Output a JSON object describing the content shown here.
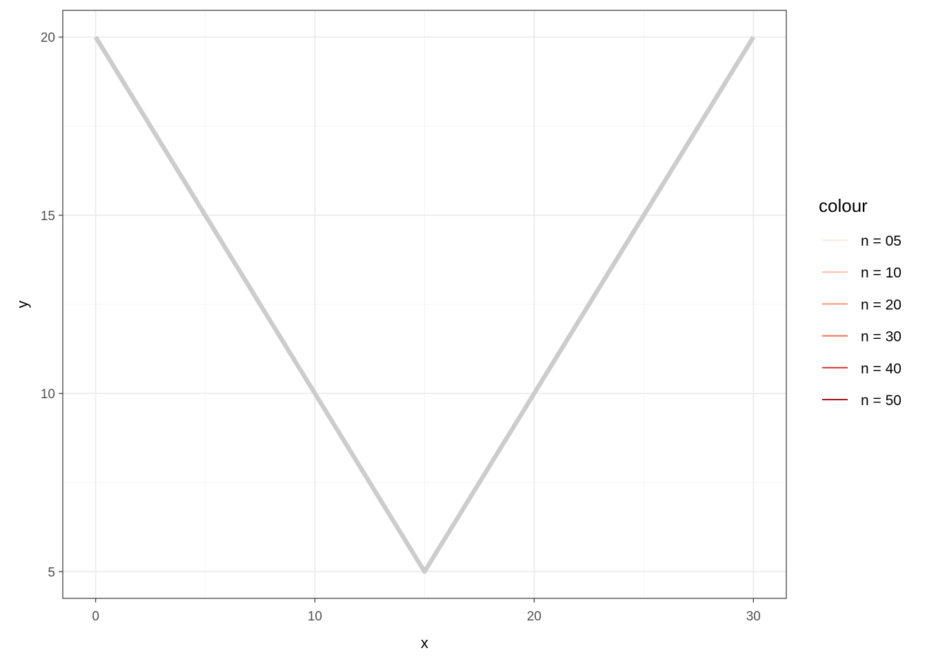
{
  "chart_data": {
    "type": "line",
    "title": "",
    "xlabel": "x",
    "ylabel": "y",
    "xlim": [
      -1.5,
      31.5
    ],
    "ylim": [
      4.25,
      20.75
    ],
    "x_ticks": [
      0,
      10,
      20,
      30
    ],
    "y_ticks": [
      5,
      10,
      15,
      20
    ],
    "x_tick_labels": [
      "0",
      "10",
      "20",
      "30"
    ],
    "y_tick_labels": [
      "5",
      "10",
      "15",
      "20"
    ],
    "grid": true,
    "series": [
      {
        "x": [
          0,
          15,
          30
        ],
        "y": [
          20,
          5,
          20
        ],
        "color": "#CCCCCC"
      }
    ],
    "legend": {
      "title": "colour",
      "placement": "right",
      "entries": [
        {
          "label": "n = 05",
          "color": "#FEE5D9"
        },
        {
          "label": "n = 10",
          "color": "#FCBBA1"
        },
        {
          "label": "n = 20",
          "color": "#FC9272"
        },
        {
          "label": "n = 30",
          "color": "#FB6A4A"
        },
        {
          "label": "n = 40",
          "color": "#DE2D26"
        },
        {
          "label": "n = 50",
          "color": "#A50F15"
        }
      ]
    }
  }
}
